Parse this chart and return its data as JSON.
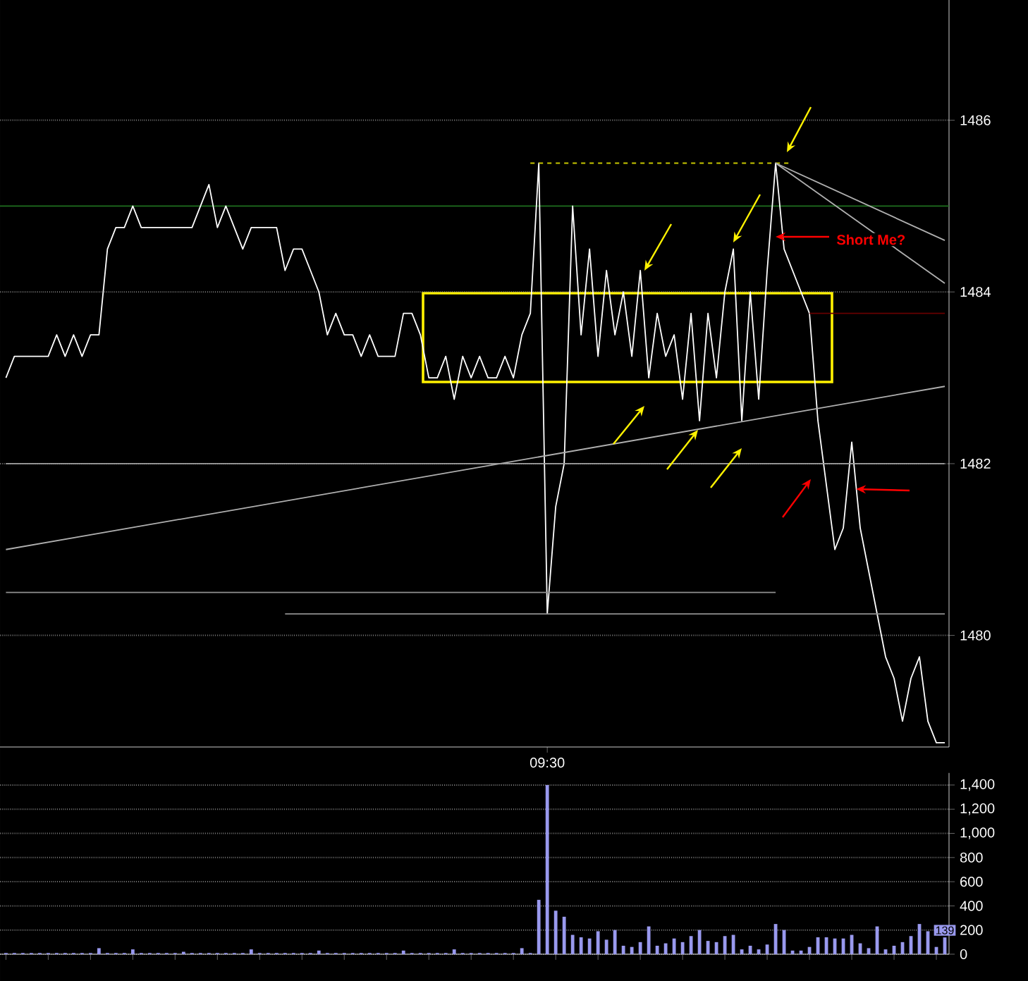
{
  "chart_data": [
    {
      "type": "line",
      "categories": [
        null,
        null,
        null,
        null,
        null,
        null,
        null,
        null,
        null,
        null,
        null,
        null,
        null,
        null,
        null,
        null,
        null,
        null,
        null,
        null,
        null,
        null,
        null,
        null,
        null,
        null,
        null,
        null,
        null,
        null,
        null,
        null,
        null,
        null,
        null,
        null,
        null,
        null,
        null,
        null,
        null,
        null,
        null,
        null,
        null,
        null,
        null,
        null,
        null,
        null,
        null,
        null,
        null,
        null,
        null,
        null,
        null,
        null,
        null,
        null,
        null,
        null,
        null,
        null,
        "09:30",
        null,
        null,
        null,
        null,
        null,
        null,
        null,
        null,
        null,
        null,
        null,
        null,
        null,
        null,
        null,
        null,
        null,
        null,
        null,
        null,
        null,
        null,
        null,
        null,
        null,
        null,
        null,
        null,
        null,
        null,
        null,
        null,
        null,
        null,
        null,
        null,
        null,
        null,
        null,
        null,
        null,
        null,
        null,
        null,
        null,
        null,
        null
      ],
      "series": [
        {
          "type": "line",
          "color": "#ffffff",
          "values": [
            1483.0,
            1483.25,
            1483.25,
            1483.25,
            1483.25,
            1483.25,
            1483.5,
            1483.25,
            1483.5,
            1483.25,
            1483.5,
            1483.5,
            1484.5,
            1484.75,
            1484.75,
            1485.0,
            1484.75,
            1484.75,
            1484.75,
            1484.75,
            1484.75,
            1484.75,
            1484.75,
            1485.0,
            1485.25,
            1484.75,
            1485.0,
            1484.75,
            1484.5,
            1484.75,
            1484.75,
            1484.75,
            1484.75,
            1484.25,
            1484.5,
            1484.5,
            1484.25,
            1484.0,
            1483.5,
            1483.75,
            1483.5,
            1483.5,
            1483.25,
            1483.5,
            1483.25,
            1483.25,
            1483.25,
            1483.75,
            1483.75,
            1483.5,
            1483.0,
            1483.0,
            1483.25,
            1482.75,
            1483.25,
            1483.0,
            1483.25,
            1483.0,
            1483.0,
            1483.25,
            1483.0,
            1483.5,
            1483.75,
            1485.5,
            1480.25,
            1481.5,
            1482.0,
            1485.0,
            1483.5,
            1484.5,
            1483.25,
            1484.25,
            1483.5,
            1484.0,
            1483.25,
            1484.25,
            1483.0,
            1483.75,
            1483.25,
            1483.5,
            1482.75,
            1483.75,
            1482.5,
            1483.75,
            1483.0,
            1484.0,
            1484.5,
            1482.5,
            1484.0,
            1482.75,
            1484.25,
            1485.5,
            1484.5,
            1484.25,
            1484.0,
            1483.75,
            1482.5,
            1481.75,
            1481.0,
            1481.25,
            1482.25,
            1481.25,
            1480.75,
            1480.25,
            1479.75,
            1479.5,
            1479.0,
            1479.5,
            1479.75,
            1479.0,
            1478.75,
            1478.75
          ]
        },
        {
          "type": "line",
          "color": "#c8c800",
          "line_style": "dashed",
          "values": [
            null,
            null,
            null,
            null,
            null,
            null,
            null,
            null,
            null,
            null,
            null,
            null,
            null,
            null,
            null,
            null,
            null,
            null,
            null,
            null,
            null,
            null,
            null,
            null,
            null,
            null,
            null,
            null,
            null,
            null,
            null,
            null,
            null,
            null,
            null,
            null,
            null,
            null,
            null,
            null,
            null,
            null,
            null,
            null,
            null,
            null,
            null,
            null,
            null,
            null,
            null,
            null,
            null,
            null,
            null,
            null,
            null,
            null,
            null,
            null,
            null,
            null,
            1485.5,
            null,
            null,
            null,
            null,
            null,
            null,
            null,
            null,
            null,
            null,
            null,
            null,
            null,
            null,
            null,
            null,
            null,
            null,
            null,
            null,
            null,
            null,
            null,
            null,
            null,
            null,
            null,
            null,
            null,
            null,
            1485.5,
            null,
            null,
            null,
            null,
            null,
            null,
            null,
            null,
            null,
            null,
            null,
            null,
            null,
            null,
            null,
            null,
            null,
            null
          ]
        },
        {
          "type": "line",
          "color": "#b0b0b0",
          "values": [
            1481.0,
            null,
            null,
            null,
            null,
            null,
            null,
            null,
            null,
            null,
            null,
            null,
            null,
            null,
            null,
            null,
            null,
            null,
            null,
            null,
            null,
            null,
            null,
            null,
            null,
            null,
            null,
            null,
            null,
            null,
            null,
            null,
            null,
            null,
            null,
            null,
            null,
            null,
            null,
            null,
            null,
            null,
            null,
            null,
            null,
            null,
            null,
            null,
            null,
            null,
            null,
            null,
            null,
            null,
            null,
            null,
            null,
            null,
            null,
            null,
            null,
            null,
            null,
            null,
            null,
            null,
            null,
            null,
            null,
            null,
            null,
            null,
            null,
            null,
            null,
            null,
            null,
            null,
            null,
            null,
            null,
            null,
            null,
            null,
            null,
            null,
            null,
            null,
            null,
            null,
            null,
            null,
            null,
            null,
            null,
            null,
            null,
            null,
            null,
            null,
            null,
            null,
            null,
            null,
            null,
            null,
            null,
            null,
            null,
            null,
            null,
            1482.9
          ]
        },
        {
          "type": "line",
          "color": "#b0b0b0",
          "values": [
            null,
            null,
            null,
            null,
            null,
            null,
            null,
            null,
            null,
            null,
            null,
            null,
            null,
            null,
            null,
            null,
            null,
            null,
            null,
            null,
            null,
            null,
            null,
            null,
            null,
            null,
            null,
            null,
            null,
            null,
            null,
            null,
            null,
            null,
            null,
            null,
            null,
            null,
            null,
            null,
            null,
            null,
            null,
            null,
            null,
            null,
            null,
            null,
            null,
            null,
            null,
            null,
            null,
            null,
            null,
            null,
            null,
            null,
            null,
            null,
            null,
            null,
            null,
            null,
            null,
            null,
            null,
            null,
            null,
            null,
            null,
            null,
            null,
            null,
            null,
            null,
            null,
            null,
            null,
            null,
            null,
            null,
            null,
            null,
            null,
            null,
            null,
            null,
            null,
            null,
            null,
            1485.5,
            null,
            null,
            null,
            null,
            null,
            null,
            null,
            null,
            null,
            null,
            null,
            null,
            null,
            null,
            null,
            null,
            null,
            null,
            null,
            1484.6
          ]
        },
        {
          "type": "line",
          "color": "#b0b0b0",
          "values": [
            null,
            null,
            null,
            null,
            null,
            null,
            null,
            null,
            null,
            null,
            null,
            null,
            null,
            null,
            null,
            null,
            null,
            null,
            null,
            null,
            null,
            null,
            null,
            null,
            null,
            null,
            null,
            null,
            null,
            null,
            null,
            null,
            null,
            null,
            null,
            null,
            null,
            null,
            null,
            null,
            null,
            null,
            null,
            null,
            null,
            null,
            null,
            null,
            null,
            null,
            null,
            null,
            null,
            null,
            null,
            null,
            null,
            null,
            null,
            null,
            null,
            null,
            null,
            null,
            null,
            null,
            null,
            null,
            null,
            null,
            null,
            null,
            null,
            null,
            null,
            null,
            null,
            null,
            null,
            null,
            null,
            null,
            null,
            null,
            null,
            null,
            null,
            null,
            null,
            null,
            null,
            1485.5,
            null,
            null,
            null,
            null,
            null,
            null,
            null,
            null,
            null,
            null,
            null,
            null,
            null,
            null,
            null,
            null,
            null,
            null,
            null,
            1484.1
          ]
        },
        {
          "type": "line",
          "color": "#909090",
          "values": [
            1480.5,
            null,
            null,
            null,
            null,
            null,
            null,
            null,
            null,
            null,
            null,
            null,
            null,
            null,
            null,
            null,
            null,
            null,
            null,
            null,
            null,
            null,
            null,
            null,
            null,
            null,
            null,
            null,
            null,
            null,
            null,
            null,
            null,
            null,
            null,
            null,
            null,
            null,
            null,
            null,
            null,
            null,
            null,
            null,
            null,
            null,
            null,
            null,
            null,
            null,
            null,
            null,
            null,
            null,
            null,
            null,
            null,
            null,
            null,
            null,
            null,
            null,
            null,
            null,
            null,
            null,
            null,
            null,
            null,
            null,
            null,
            null,
            null,
            null,
            null,
            null,
            null,
            null,
            null,
            null,
            null,
            null,
            null,
            null,
            null,
            null,
            null,
            null,
            null,
            null,
            null,
            1480.5,
            null,
            null,
            null,
            null,
            null,
            null,
            null,
            null,
            null,
            null,
            null,
            null,
            null,
            null,
            null,
            null,
            null,
            null,
            null,
            null
          ]
        },
        {
          "type": "line",
          "color": "#909090",
          "values": [
            null,
            null,
            null,
            null,
            null,
            null,
            null,
            null,
            null,
            null,
            null,
            null,
            null,
            null,
            null,
            null,
            null,
            null,
            null,
            null,
            null,
            null,
            null,
            null,
            null,
            null,
            null,
            null,
            null,
            null,
            null,
            null,
            null,
            1480.25,
            null,
            null,
            null,
            null,
            null,
            null,
            null,
            null,
            null,
            null,
            null,
            null,
            null,
            null,
            null,
            null,
            null,
            null,
            null,
            null,
            null,
            null,
            null,
            null,
            null,
            null,
            null,
            null,
            null,
            null,
            null,
            null,
            null,
            null,
            null,
            null,
            null,
            null,
            null,
            null,
            null,
            null,
            null,
            null,
            null,
            null,
            null,
            null,
            null,
            null,
            null,
            null,
            null,
            null,
            null,
            null,
            null,
            null,
            null,
            null,
            null,
            null,
            null,
            null,
            null,
            null,
            null,
            null,
            null,
            null,
            null,
            null,
            null,
            null,
            null,
            null,
            null,
            1480.25
          ]
        },
        {
          "type": "line",
          "color": "#a0a0a0",
          "values": [
            1482,
            null,
            null,
            null,
            null,
            null,
            null,
            null,
            null,
            null,
            null,
            null,
            null,
            null,
            null,
            null,
            null,
            null,
            null,
            null,
            null,
            null,
            null,
            null,
            null,
            null,
            null,
            null,
            null,
            null,
            null,
            null,
            null,
            null,
            null,
            null,
            null,
            null,
            null,
            null,
            null,
            null,
            null,
            null,
            null,
            null,
            null,
            null,
            null,
            null,
            null,
            null,
            null,
            null,
            null,
            null,
            null,
            null,
            null,
            null,
            null,
            null,
            null,
            null,
            null,
            null,
            null,
            null,
            null,
            null,
            null,
            null,
            null,
            null,
            null,
            null,
            null,
            null,
            null,
            null,
            null,
            null,
            null,
            null,
            null,
            null,
            null,
            null,
            null,
            null,
            null,
            null,
            null,
            null,
            null,
            null,
            null,
            null,
            null,
            null,
            null,
            null,
            null,
            null,
            null,
            null,
            null,
            null,
            null,
            null,
            null,
            1482
          ]
        },
        {
          "type": "line",
          "color": "#660000",
          "values": [
            null,
            null,
            null,
            null,
            null,
            null,
            null,
            null,
            null,
            null,
            null,
            null,
            null,
            null,
            null,
            null,
            null,
            null,
            null,
            null,
            null,
            null,
            null,
            null,
            null,
            null,
            null,
            null,
            null,
            null,
            null,
            null,
            null,
            null,
            null,
            null,
            null,
            null,
            null,
            null,
            null,
            null,
            null,
            null,
            null,
            null,
            null,
            null,
            null,
            null,
            null,
            null,
            null,
            null,
            null,
            null,
            null,
            null,
            null,
            null,
            null,
            null,
            null,
            null,
            null,
            null,
            null,
            null,
            null,
            null,
            null,
            null,
            null,
            null,
            null,
            null,
            null,
            null,
            null,
            null,
            null,
            null,
            null,
            null,
            null,
            null,
            null,
            null,
            null,
            null,
            null,
            null,
            null,
            null,
            null,
            1483.75,
            null,
            null,
            null,
            null,
            null,
            null,
            null,
            null,
            null,
            null,
            null,
            null,
            null,
            null,
            null,
            1483.75
          ]
        }
      ],
      "ylim": [
        1478.7,
        1487.4
      ],
      "yticks": [
        1480,
        1482,
        1484,
        1486
      ],
      "grid": "y",
      "marker": "none",
      "ref_lines": [
        {
          "axis": "y",
          "value": 1485,
          "color": "#1f6f1f"
        }
      ],
      "annotations": [
        "Short Me?"
      ]
    },
    {
      "type": "bar",
      "categories": [
        null,
        null,
        null,
        null,
        null,
        null,
        null,
        null,
        null,
        null,
        null,
        null,
        null,
        null,
        null,
        null,
        null,
        null,
        null,
        null,
        null,
        null,
        null,
        null,
        null,
        null,
        null,
        null,
        null,
        null,
        null,
        null,
        null,
        null,
        null,
        null,
        null,
        null,
        null,
        null,
        null,
        null,
        null,
        null,
        null,
        null,
        null,
        null,
        null,
        null,
        null,
        null,
        null,
        null,
        null,
        null,
        null,
        null,
        null,
        null,
        null,
        null,
        null,
        null,
        null,
        null,
        null,
        null,
        null,
        null,
        null,
        null,
        null,
        null,
        null,
        null,
        null,
        null,
        null,
        null,
        null,
        null,
        null,
        null,
        null,
        null,
        null,
        null,
        null,
        null,
        null,
        null,
        null,
        null,
        null,
        null,
        null,
        null,
        null,
        null,
        null,
        null,
        null,
        null,
        null,
        null,
        null,
        null,
        null,
        null,
        null,
        null
      ],
      "color": "#9999ee",
      "values": [
        10,
        10,
        10,
        10,
        10,
        10,
        10,
        10,
        10,
        10,
        10,
        50,
        10,
        10,
        10,
        40,
        10,
        10,
        10,
        10,
        10,
        20,
        10,
        10,
        10,
        10,
        10,
        10,
        10,
        40,
        10,
        10,
        10,
        10,
        10,
        10,
        10,
        30,
        10,
        10,
        10,
        10,
        10,
        10,
        10,
        10,
        10,
        30,
        10,
        10,
        10,
        10,
        10,
        40,
        10,
        10,
        10,
        10,
        10,
        10,
        10,
        50,
        10,
        450,
        1400,
        360,
        310,
        160,
        140,
        130,
        190,
        120,
        200,
        70,
        60,
        100,
        230,
        70,
        90,
        130,
        100,
        150,
        200,
        110,
        100,
        150,
        160,
        40,
        70,
        40,
        80,
        250,
        200,
        30,
        30,
        60,
        140,
        140,
        130,
        130,
        160,
        90,
        50,
        230,
        40,
        70,
        100,
        150,
        250,
        190,
        60,
        139
      ],
      "value_labels": [
        null,
        null,
        null,
        null,
        null,
        null,
        null,
        null,
        null,
        null,
        null,
        null,
        null,
        null,
        null,
        null,
        null,
        null,
        null,
        null,
        null,
        null,
        null,
        null,
        null,
        null,
        null,
        null,
        null,
        null,
        null,
        null,
        null,
        null,
        null,
        null,
        null,
        null,
        null,
        null,
        null,
        null,
        null,
        null,
        null,
        null,
        null,
        null,
        null,
        null,
        null,
        null,
        null,
        null,
        null,
        null,
        null,
        null,
        null,
        null,
        null,
        null,
        null,
        null,
        null,
        null,
        null,
        null,
        null,
        null,
        null,
        null,
        null,
        null,
        null,
        null,
        null,
        null,
        null,
        null,
        null,
        null,
        null,
        null,
        null,
        null,
        null,
        null,
        null,
        null,
        null,
        null,
        null,
        null,
        null,
        null,
        null,
        null,
        null,
        null,
        null,
        null,
        null,
        null,
        null,
        null,
        null,
        null,
        null,
        null,
        null,
        "139"
      ],
      "ylim": [
        0,
        1500
      ],
      "yticks": [
        0,
        200,
        400,
        600,
        800,
        {
          "value": 1000,
          "label": "1,000"
        },
        {
          "value": 1200,
          "label": "1,200"
        },
        {
          "value": 1400,
          "label": "1,400"
        }
      ],
      "grid": "y",
      "tick_labels": "y"
    }
  ]
}
